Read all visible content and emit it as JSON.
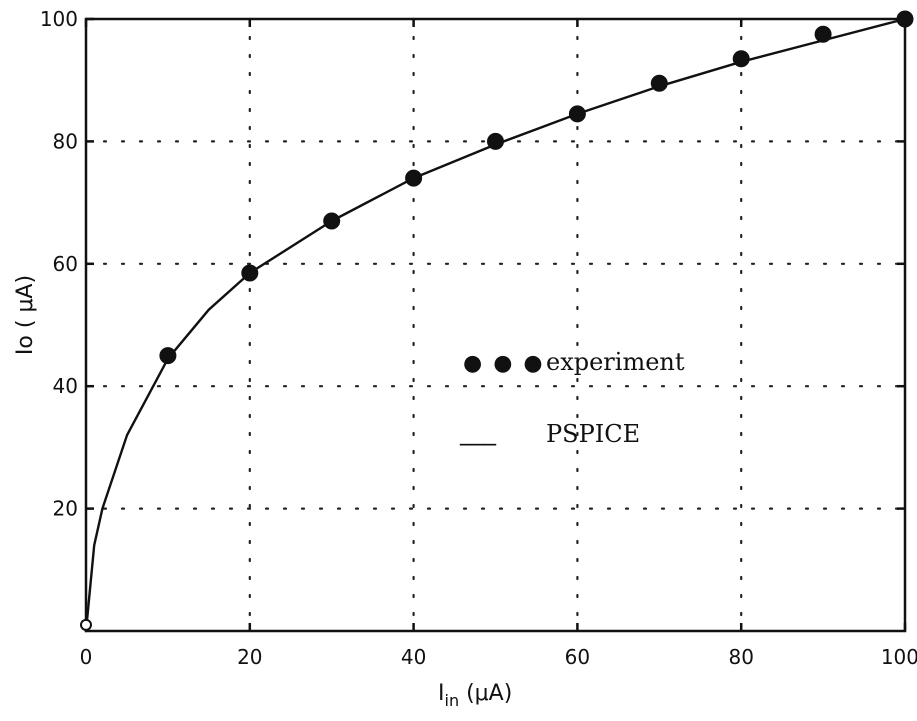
{
  "chart_data": {
    "type": "scatter",
    "title": "",
    "xlabel": "I",
    "xlabel_sub": "in",
    "xlabel_unit": " (μA)",
    "ylabel": "Io ( μA)",
    "xlim": [
      0,
      100
    ],
    "ylim": [
      0,
      100
    ],
    "x_ticks": [
      "0",
      "20",
      "40",
      "60",
      "80",
      "100"
    ],
    "y_ticks": [
      "20",
      "40",
      "60",
      "80",
      "100"
    ],
    "grid": true,
    "grid_style": "dotted",
    "legend_position": "center",
    "series": [
      {
        "name": "experiment",
        "kind": "points",
        "x": [
          0,
          10,
          20,
          30,
          40,
          50,
          60,
          70,
          80,
          90,
          100
        ],
        "y": [
          1,
          45,
          58.5,
          67,
          74,
          80,
          84.5,
          89.5,
          93.5,
          97.5,
          100
        ]
      },
      {
        "name": "PSPICE",
        "kind": "line",
        "x": [
          0,
          1,
          2,
          5,
          10,
          15,
          20,
          30,
          40,
          50,
          60,
          70,
          80,
          90,
          100
        ],
        "y": [
          0,
          14,
          20,
          32,
          44.5,
          52.5,
          58.5,
          67,
          74,
          79.5,
          84.5,
          89,
          93,
          96.5,
          100
        ]
      }
    ],
    "legend": {
      "experiment_marker": "● ● ●",
      "experiment_label": "experiment",
      "pspice_marker": "___",
      "pspice_label": "PSPICE"
    }
  }
}
